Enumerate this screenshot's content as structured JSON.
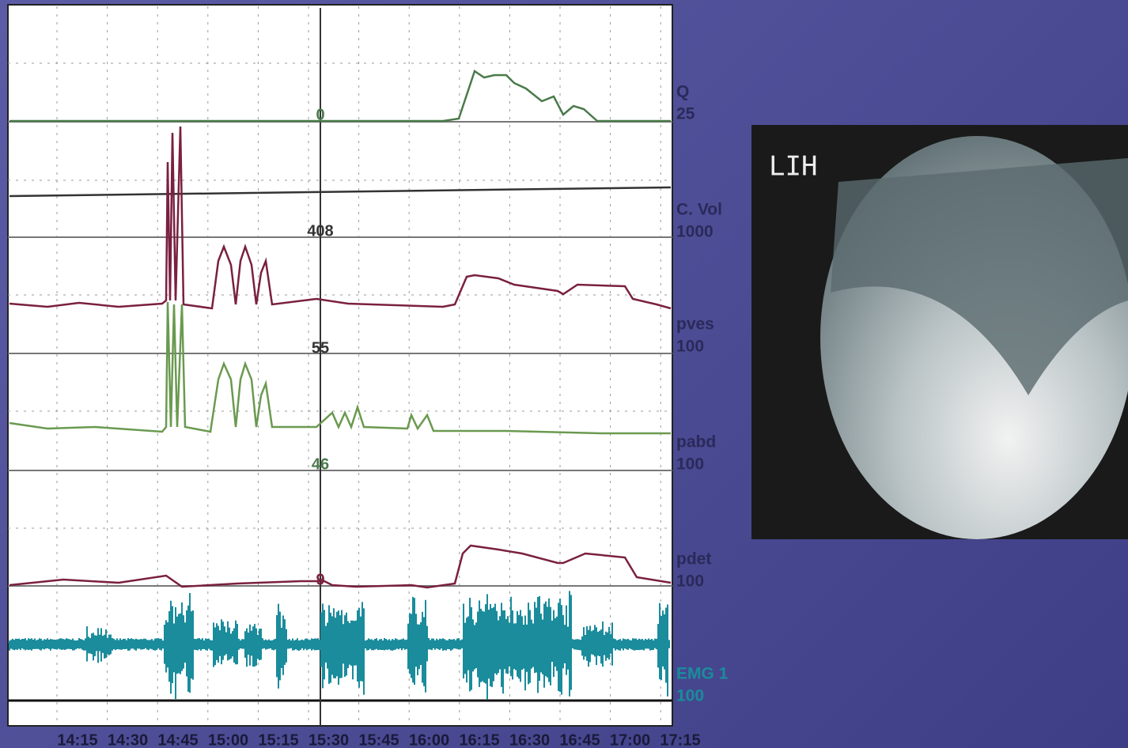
{
  "channels": [
    {
      "name": "Q",
      "scale": "25",
      "marker": "0"
    },
    {
      "name": "C. Vol",
      "scale": "1000",
      "marker": "408"
    },
    {
      "name": "pves",
      "scale": "100",
      "marker": "55"
    },
    {
      "name": "pabd",
      "scale": "100",
      "marker": "46"
    },
    {
      "name": "pdet",
      "scale": "100",
      "marker": "9"
    },
    {
      "name": "EMG 1",
      "scale": "100"
    }
  ],
  "time_labels": [
    "14:15",
    "14:30",
    "14:45",
    "15:00",
    "15:15",
    "15:30",
    "15:45",
    "16:00",
    "16:15",
    "16:30",
    "16:45",
    "17:00",
    "17:15"
  ],
  "image": {
    "label": "LIH"
  }
}
